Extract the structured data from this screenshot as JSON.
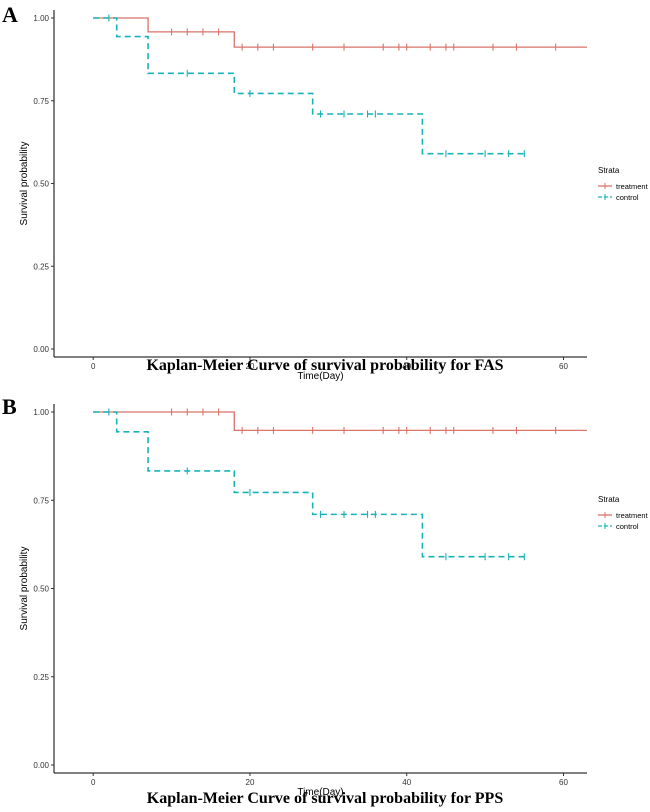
{
  "chart_data": [
    {
      "type": "line",
      "panel_label": "A",
      "caption": "Kaplan-Meier Curve of survival probability for FAS",
      "xlabel": "Time(Day)",
      "ylabel": "Survival probability",
      "xlim": [
        -5,
        63
      ],
      "ylim": [
        0,
        1
      ],
      "x_ticks": [
        0,
        20,
        40,
        60
      ],
      "y_ticks": [
        "0.00",
        "0.25",
        "0.50",
        "0.75",
        "1.00"
      ],
      "grid": false,
      "legend": {
        "title": "Strata",
        "position": "right"
      },
      "series": [
        {
          "name": "treatment",
          "color": "#d9736b",
          "dash": false,
          "steps": [
            [
              0,
              1.0
            ],
            [
              7,
              0.958
            ],
            [
              18,
              0.912
            ]
          ],
          "end": 63,
          "censor": [
            10,
            12,
            14,
            16,
            19,
            21,
            23,
            28,
            32,
            37,
            39,
            40,
            43,
            45,
            46,
            51,
            54,
            59
          ]
        },
        {
          "name": "control",
          "color": "#17b3b8",
          "dash": true,
          "steps": [
            [
              0,
              1.0
            ],
            [
              3,
              0.944
            ],
            [
              7,
              0.833
            ],
            [
              18,
              0.772
            ],
            [
              28,
              0.71
            ],
            [
              42,
              0.59
            ]
          ],
          "end": 55,
          "censor": [
            2,
            12,
            20,
            29,
            32,
            35,
            36,
            45,
            50,
            53,
            55
          ]
        }
      ]
    },
    {
      "type": "line",
      "panel_label": "B",
      "caption": "Kaplan-Meier Curve of survival probability for PPS",
      "xlabel": "Time(Day)",
      "ylabel": "Survival probability",
      "xlim": [
        -5,
        63
      ],
      "ylim": [
        0,
        1
      ],
      "x_ticks": [
        0,
        20,
        40,
        60
      ],
      "y_ticks": [
        "0.00",
        "0.25",
        "0.50",
        "0.75",
        "1.00"
      ],
      "grid": false,
      "legend": {
        "title": "Strata",
        "position": "right"
      },
      "series": [
        {
          "name": "treatment",
          "color": "#d9736b",
          "dash": false,
          "steps": [
            [
              0,
              1.0
            ],
            [
              18,
              0.948
            ]
          ],
          "end": 63,
          "censor": [
            10,
            12,
            14,
            16,
            19,
            21,
            23,
            28,
            32,
            37,
            39,
            40,
            43,
            45,
            46,
            51,
            54,
            59
          ]
        },
        {
          "name": "control",
          "color": "#17b3b8",
          "dash": true,
          "steps": [
            [
              0,
              1.0
            ],
            [
              3,
              0.944
            ],
            [
              7,
              0.833
            ],
            [
              18,
              0.772
            ],
            [
              28,
              0.71
            ],
            [
              42,
              0.59
            ]
          ],
          "end": 55,
          "censor": [
            2,
            12,
            20,
            29,
            32,
            35,
            36,
            45,
            50,
            53,
            55
          ]
        }
      ]
    }
  ]
}
